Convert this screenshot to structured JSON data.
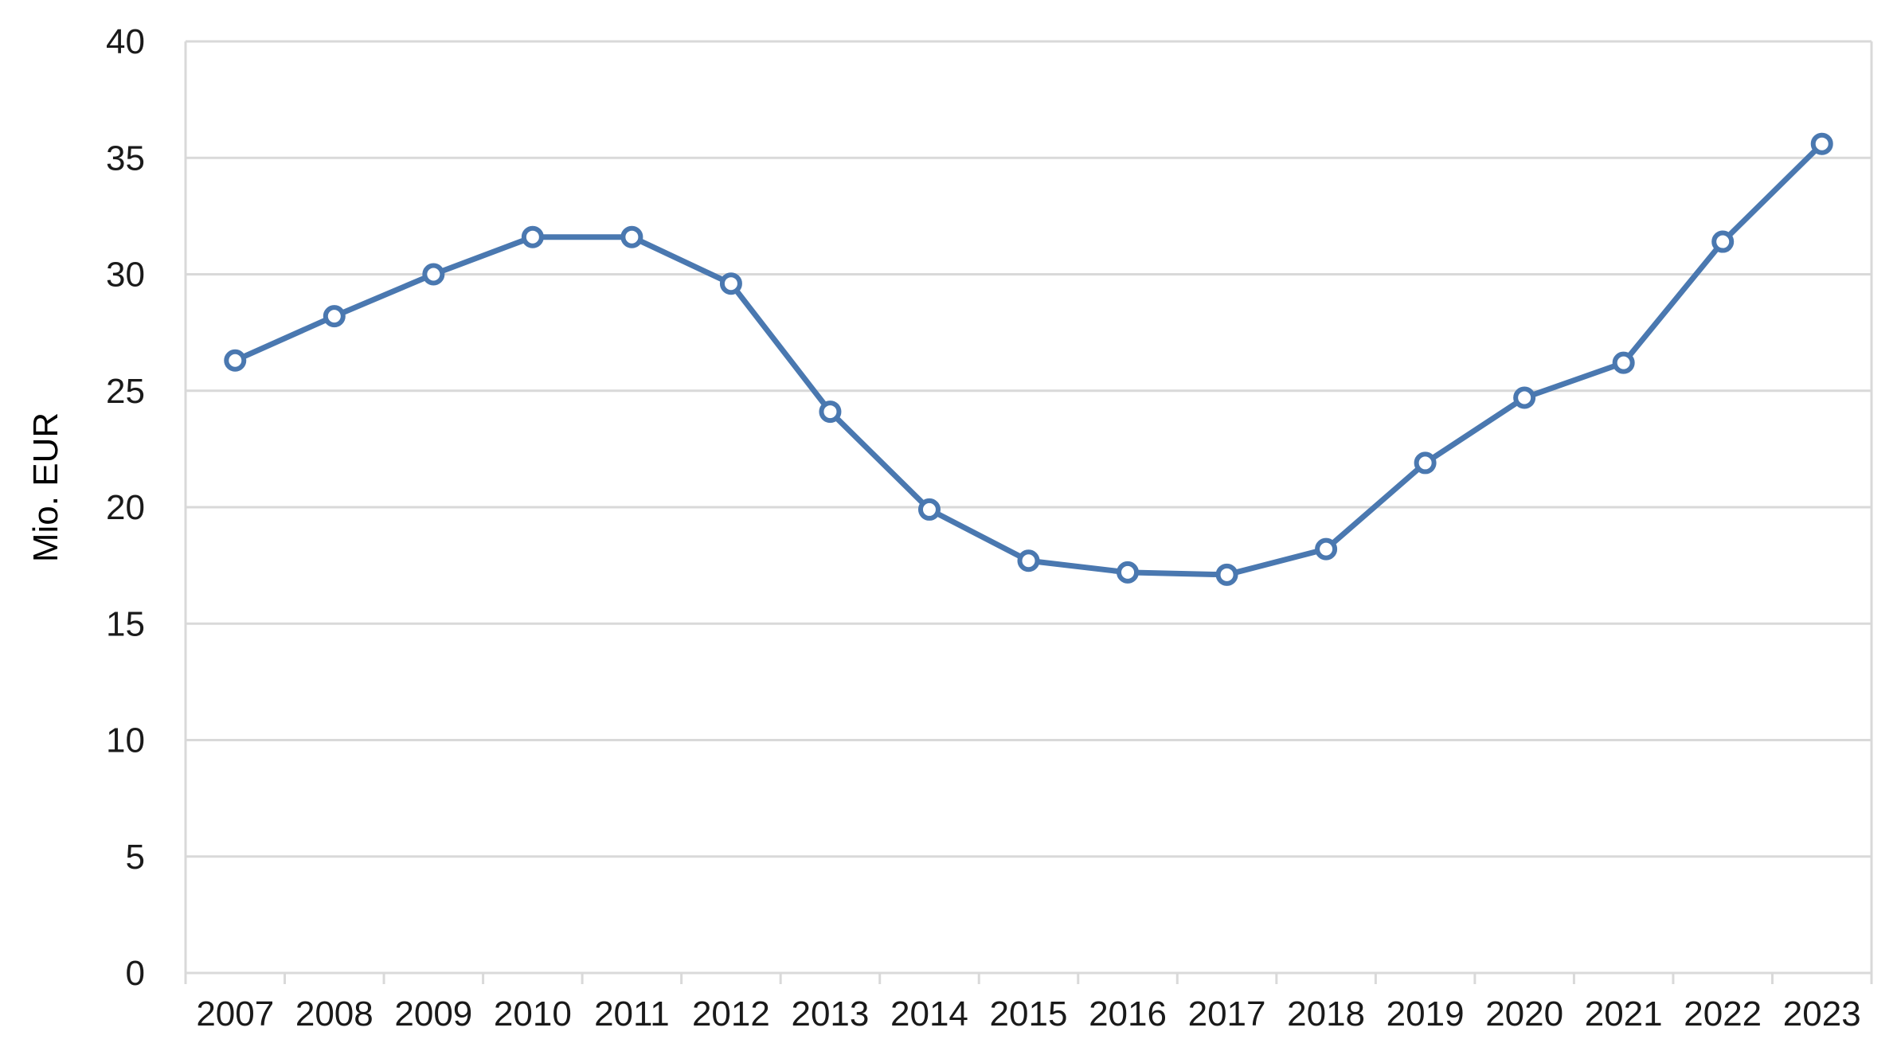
{
  "chart_data": {
    "type": "line",
    "title": "",
    "xlabel": "",
    "ylabel": "Mio. EUR",
    "categories": [
      "2007",
      "2008",
      "2009",
      "2010",
      "2011",
      "2012",
      "2013",
      "2014",
      "2015",
      "2016",
      "2017",
      "2018",
      "2019",
      "2020",
      "2021",
      "2022",
      "2023"
    ],
    "series": [
      {
        "values": [
          26.3,
          28.2,
          30.0,
          31.6,
          31.6,
          29.6,
          24.1,
          19.9,
          17.7,
          17.2,
          17.1,
          18.2,
          21.9,
          24.7,
          26.2,
          31.4,
          35.6
        ],
        "color": "#4A78B0"
      }
    ],
    "ylim": [
      0,
      40
    ],
    "yticks": [
      "0",
      "5",
      "10",
      "15",
      "20",
      "25",
      "30",
      "35",
      "40"
    ],
    "grid": true,
    "legend": "none",
    "marker": "open-circle"
  }
}
